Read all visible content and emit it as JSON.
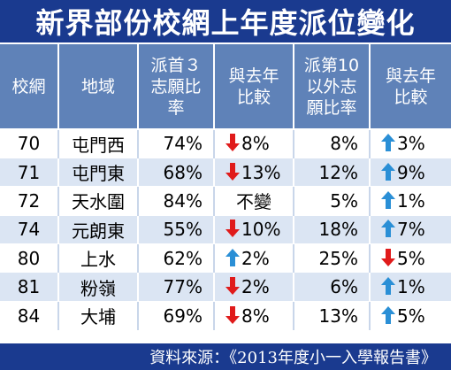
{
  "title": "新界部份校網上年度派位變化",
  "columns": [
    [
      "校網"
    ],
    [
      "地域"
    ],
    [
      "派首３",
      "志願比",
      "率"
    ],
    [
      "與去年",
      "比較"
    ],
    [
      "派第10",
      "以外志",
      "願比率"
    ],
    [
      "與去年",
      "比較"
    ]
  ],
  "rows": [
    {
      "net": "70",
      "area": "屯門西",
      "first_pct": "74%",
      "first_change": {
        "dir": "down",
        "value": "8%"
      },
      "outside_pct": "8%",
      "outside_change": {
        "dir": "up",
        "value": "3%"
      }
    },
    {
      "net": "71",
      "area": "屯門東",
      "first_pct": "68%",
      "first_change": {
        "dir": "down",
        "value": "13%"
      },
      "outside_pct": "12%",
      "outside_change": {
        "dir": "up",
        "value": "9%"
      }
    },
    {
      "net": "72",
      "area": "天水圍",
      "first_pct": "84%",
      "first_change": {
        "dir": "none",
        "value": "不變"
      },
      "outside_pct": "5%",
      "outside_change": {
        "dir": "up",
        "value": "1%"
      }
    },
    {
      "net": "74",
      "area": "元朗東",
      "first_pct": "55%",
      "first_change": {
        "dir": "down",
        "value": "10%"
      },
      "outside_pct": "18%",
      "outside_change": {
        "dir": "up",
        "value": "7%"
      }
    },
    {
      "net": "80",
      "area": "上水",
      "first_pct": "62%",
      "first_change": {
        "dir": "up",
        "value": "2%"
      },
      "outside_pct": "25%",
      "outside_change": {
        "dir": "down",
        "value": "5%"
      }
    },
    {
      "net": "81",
      "area": "粉嶺",
      "first_pct": "77%",
      "first_change": {
        "dir": "down",
        "value": "2%"
      },
      "outside_pct": "6%",
      "outside_change": {
        "dir": "up",
        "value": "1%"
      }
    },
    {
      "net": "84",
      "area": "大埔",
      "first_pct": "69%",
      "first_change": {
        "dir": "down",
        "value": "8%"
      },
      "outside_pct": "13%",
      "outside_change": {
        "dir": "up",
        "value": "5%"
      }
    }
  ],
  "icons": {
    "up": "up-arrow-icon",
    "down": "down-arrow-icon"
  },
  "colors": {
    "title_bg": "#1a3a8f",
    "header_bg": "#5f82b8",
    "stripe": "#dbe5f3",
    "arrow_up": "#2a8fd6",
    "arrow_down": "#e01b1b"
  },
  "source": "資料來源：《2013年度小一入學報告書》"
}
